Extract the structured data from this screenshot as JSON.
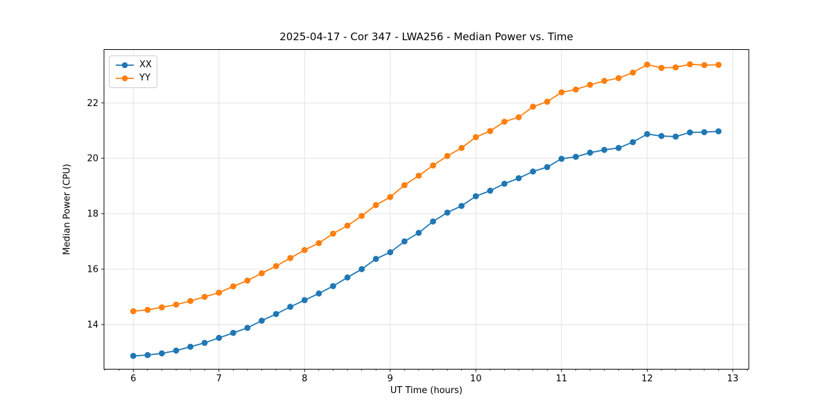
{
  "chart_data": {
    "type": "line",
    "title": "2025-04-17 - Cor 347 - LWA256 - Median Power vs. Time",
    "xlabel": "UT Time (hours)",
    "ylabel": "Median Power (CPU)",
    "xlim": [
      5.658,
      13.187
    ],
    "ylim": [
      12.39,
      23.92
    ],
    "xticks": [
      6,
      7,
      8,
      9,
      10,
      11,
      12,
      13
    ],
    "yticks": [
      14,
      16,
      18,
      20,
      22
    ],
    "x_minor_step_hours": 0.1667,
    "grid": true,
    "grid_color": "#e0e0e0",
    "legend_position": "upper-left",
    "x": [
      6.0,
      6.167,
      6.333,
      6.5,
      6.667,
      6.833,
      7.0,
      7.167,
      7.333,
      7.5,
      7.667,
      7.833,
      8.0,
      8.167,
      8.333,
      8.5,
      8.667,
      8.833,
      9.0,
      9.167,
      9.333,
      9.5,
      9.667,
      9.833,
      10.0,
      10.167,
      10.333,
      10.5,
      10.667,
      10.833,
      11.0,
      11.167,
      11.333,
      11.5,
      11.667,
      11.833,
      12.0,
      12.167,
      12.333,
      12.5,
      12.667,
      12.833
    ],
    "series": [
      {
        "name": "XX",
        "color": "#1f77b4",
        "values": [
          12.87,
          12.9,
          12.96,
          13.06,
          13.2,
          13.34,
          13.52,
          13.7,
          13.88,
          14.14,
          14.38,
          14.64,
          14.88,
          15.12,
          15.39,
          15.7,
          16.0,
          16.37,
          16.61,
          17.0,
          17.31,
          17.72,
          18.04,
          18.28,
          18.63,
          18.83,
          19.08,
          19.28,
          19.52,
          19.68,
          19.98,
          20.05,
          20.2,
          20.3,
          20.37,
          20.58,
          20.87,
          20.8,
          20.78,
          20.93,
          20.94,
          20.97
        ]
      },
      {
        "name": "YY",
        "color": "#ff7f0e",
        "values": [
          14.48,
          14.53,
          14.62,
          14.72,
          14.85,
          15.0,
          15.15,
          15.38,
          15.59,
          15.85,
          16.11,
          16.4,
          16.69,
          16.94,
          17.28,
          17.57,
          17.92,
          18.31,
          18.6,
          19.03,
          19.37,
          19.74,
          20.08,
          20.37,
          20.76,
          20.98,
          21.32,
          21.48,
          21.86,
          22.04,
          22.38,
          22.48,
          22.65,
          22.79,
          22.89,
          23.09,
          23.38,
          23.26,
          23.28,
          23.39,
          23.36,
          23.37
        ]
      }
    ]
  }
}
